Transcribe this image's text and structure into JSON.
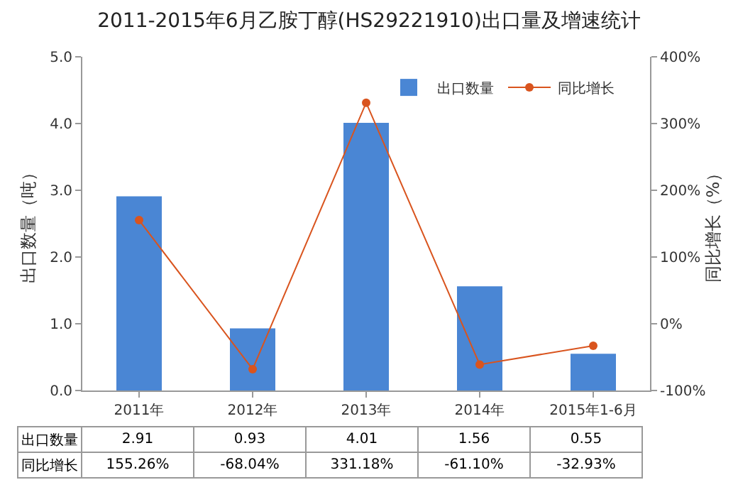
{
  "chart_data": {
    "type": "bar",
    "title": "2011-2015年6月乙胺丁醇(HS29221910)出口量及增速统计",
    "categories": [
      "2011年",
      "2012年",
      "2013年",
      "2014年",
      "2015年1-6月"
    ],
    "series": [
      {
        "name": "出口数量",
        "color": "#4a86d4",
        "values": [
          2.91,
          0.93,
          4.01,
          1.56,
          0.55
        ],
        "value_labels": [
          "2.91",
          "0.93",
          "4.01",
          "1.56",
          "0.55"
        ]
      },
      {
        "name": "同比增长",
        "type": "line",
        "axis": "y2",
        "color": "#d9541e",
        "marker": "circle",
        "values": [
          155.26,
          -68.04,
          331.18,
          -61.1,
          -32.93
        ],
        "value_labels": [
          "155.26%",
          "-68.04%",
          "331.18%",
          "-61.10%",
          "-32.93%"
        ]
      }
    ],
    "ylabel": "出口数量（吨）",
    "y2label": "同比增长（%）",
    "ylim": [
      0,
      5
    ],
    "yticks": [
      {
        "value": 0,
        "label": "0.0"
      },
      {
        "value": 1,
        "label": "1.0"
      },
      {
        "value": 2,
        "label": "2.0"
      },
      {
        "value": 3,
        "label": "3.0"
      },
      {
        "value": 4,
        "label": "4.0"
      },
      {
        "value": 5,
        "label": "5.0"
      }
    ],
    "y2lim": [
      -100,
      400
    ],
    "y2ticks": [
      {
        "value": -100,
        "label": "-100%"
      },
      {
        "value": 0,
        "label": "0%"
      },
      {
        "value": 100,
        "label": "100%"
      },
      {
        "value": 200,
        "label": "200%"
      },
      {
        "value": 300,
        "label": "300%"
      },
      {
        "value": 400,
        "label": "400%"
      }
    ],
    "legend": "top right"
  }
}
